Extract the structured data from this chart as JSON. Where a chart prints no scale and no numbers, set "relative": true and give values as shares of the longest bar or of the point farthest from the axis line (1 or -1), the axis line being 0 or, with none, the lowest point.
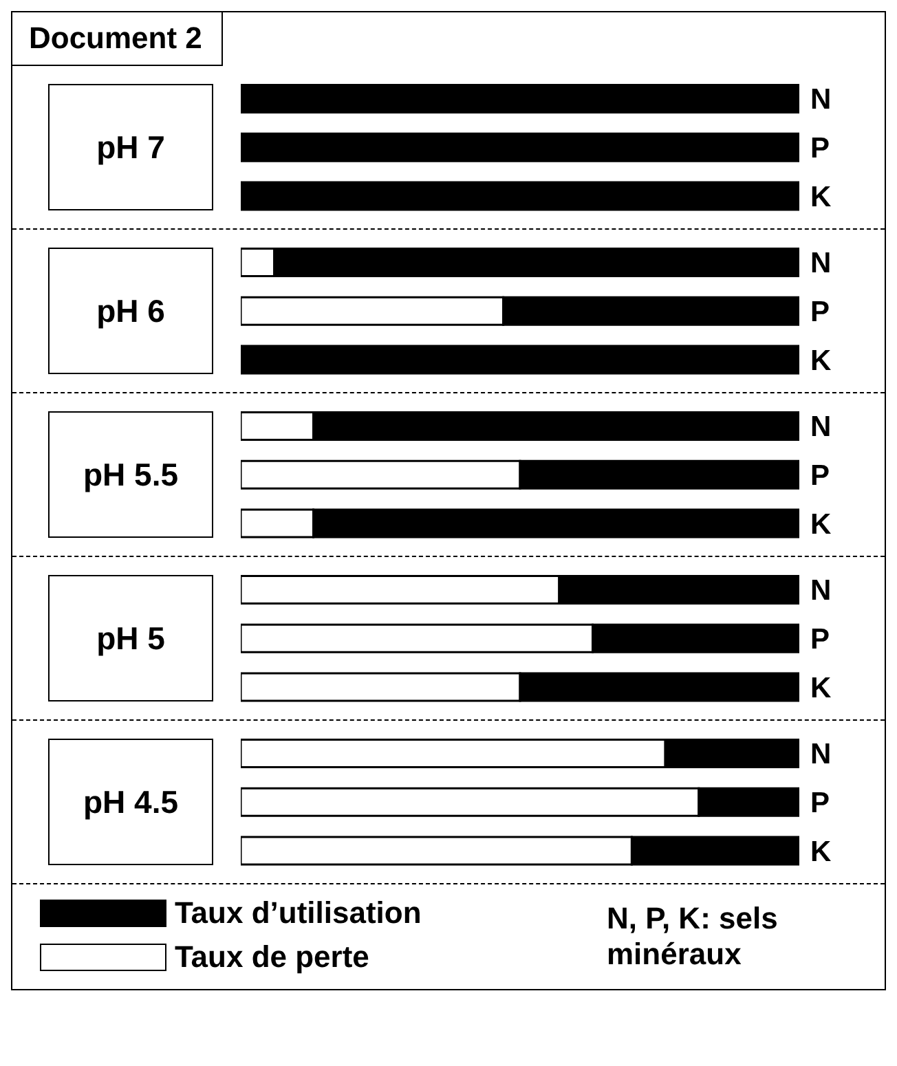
{
  "chart_data": [
    {
      "type": "bar",
      "orientation": "horizontal",
      "stacked": true,
      "relative": true,
      "title": "pH 7",
      "annotations": [
        "Document 2"
      ],
      "categories": [
        "N",
        "P",
        "K"
      ],
      "series": [
        {
          "color": "#ffffff",
          "values": [
            0,
            0,
            0
          ]
        },
        {
          "color": "#000000",
          "values": [
            1,
            1,
            1
          ]
        }
      ]
    },
    {
      "type": "bar",
      "orientation": "horizontal",
      "stacked": true,
      "relative": true,
      "title": "pH 6",
      "categories": [
        "N",
        "P",
        "K"
      ],
      "series": [
        {
          "color": "#ffffff",
          "values": [
            0.06,
            0.47,
            0
          ]
        },
        {
          "color": "#000000",
          "values": [
            0.94,
            0.53,
            1
          ]
        }
      ]
    },
    {
      "type": "bar",
      "orientation": "horizontal",
      "stacked": true,
      "relative": true,
      "title": "pH 5.5",
      "categories": [
        "N",
        "P",
        "K"
      ],
      "series": [
        {
          "color": "#ffffff",
          "values": [
            0.13,
            0.5,
            0.13
          ]
        },
        {
          "color": "#000000",
          "values": [
            0.87,
            0.5,
            0.87
          ]
        }
      ]
    },
    {
      "type": "bar",
      "orientation": "horizontal",
      "stacked": true,
      "relative": true,
      "title": "pH 5",
      "categories": [
        "N",
        "P",
        "K"
      ],
      "series": [
        {
          "color": "#ffffff",
          "values": [
            0.57,
            0.63,
            0.5
          ]
        },
        {
          "color": "#000000",
          "values": [
            0.43,
            0.37,
            0.5
          ]
        }
      ]
    },
    {
      "type": "bar",
      "orientation": "horizontal",
      "stacked": true,
      "relative": true,
      "title": "pH 4.5",
      "legend": "bottom",
      "annotations": [
        "N, P, K: sels minéraux"
      ],
      "categories": [
        "N",
        "P",
        "K"
      ],
      "series": [
        {
          "name": "Taux de perte",
          "color": "#ffffff",
          "values": [
            0.76,
            0.82,
            0.7
          ]
        },
        {
          "name": "Taux d’utilisation",
          "color": "#000000",
          "values": [
            0.24,
            0.18,
            0.3
          ]
        }
      ]
    }
  ]
}
